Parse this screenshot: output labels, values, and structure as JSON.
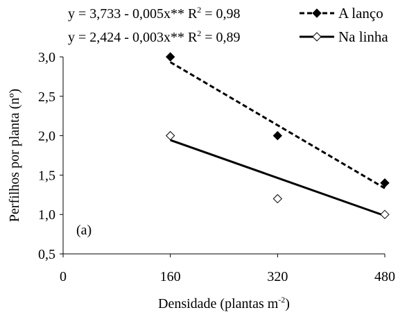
{
  "chart_data": {
    "type": "scatter",
    "xlabel": "Densidade (plantas m",
    "xlabel_sup": "-2",
    "xlabel_tail": ")",
    "ylabel": "Perfilhos por planta (nº)",
    "xlim": [
      0,
      480
    ],
    "ylim": [
      0.5,
      3.0
    ],
    "xticks": [
      0,
      160,
      320,
      480
    ],
    "xtick_labels": [
      "0",
      "160",
      "320",
      "480"
    ],
    "yticks": [
      0.5,
      1.0,
      1.5,
      2.0,
      2.5,
      3.0
    ],
    "ytick_labels": [
      "0,5",
      "1,0",
      "1,5",
      "2,0",
      "2,5",
      "3,0"
    ],
    "grid": false,
    "legend_position": "top",
    "panel_label": "(a)",
    "series": [
      {
        "name": "A lanço",
        "equation": "y = 3,733 - 0,005x**  R",
        "r2_value": " = 0,98",
        "marker": "filled-diamond",
        "line_style": "dashed",
        "x": [
          160,
          320,
          480
        ],
        "y": [
          3.0,
          2.0,
          1.4
        ],
        "fit": {
          "intercept": 3.733,
          "slope": -0.005
        }
      },
      {
        "name": "Na linha",
        "equation": "y = 2,424 - 0,003x**  R",
        "r2_value": " = 0,89",
        "marker": "open-diamond",
        "line_style": "solid",
        "x": [
          160,
          320,
          480
        ],
        "y": [
          2.0,
          1.2,
          1.0
        ],
        "fit": {
          "intercept": 2.424,
          "slope": -0.003
        }
      }
    ],
    "r2_sup": "2",
    "colors": {
      "axis": "#000000",
      "markers": "#000000",
      "lines": "#000000"
    }
  }
}
